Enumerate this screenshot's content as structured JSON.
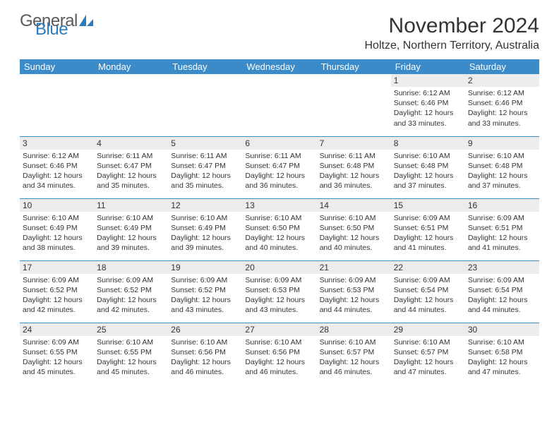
{
  "logo": {
    "part1": "General",
    "part2": "Blue"
  },
  "title": "November 2024",
  "location": "Holtze, Northern Territory, Australia",
  "colors": {
    "header_bg": "#3b8bc9",
    "header_fg": "#ffffff",
    "row_border": "#3b8bc9",
    "daynum_bg": "#ececec",
    "text": "#333333",
    "logo_gray": "#5a5a5a",
    "logo_blue": "#2b7bbd"
  },
  "weekdays": [
    "Sunday",
    "Monday",
    "Tuesday",
    "Wednesday",
    "Thursday",
    "Friday",
    "Saturday"
  ],
  "weeks": [
    [
      {
        "day": null
      },
      {
        "day": null
      },
      {
        "day": null
      },
      {
        "day": null
      },
      {
        "day": null
      },
      {
        "day": 1,
        "sunrise": "6:12 AM",
        "sunset": "6:46 PM",
        "daylight": "12 hours and 33 minutes."
      },
      {
        "day": 2,
        "sunrise": "6:12 AM",
        "sunset": "6:46 PM",
        "daylight": "12 hours and 33 minutes."
      }
    ],
    [
      {
        "day": 3,
        "sunrise": "6:12 AM",
        "sunset": "6:46 PM",
        "daylight": "12 hours and 34 minutes."
      },
      {
        "day": 4,
        "sunrise": "6:11 AM",
        "sunset": "6:47 PM",
        "daylight": "12 hours and 35 minutes."
      },
      {
        "day": 5,
        "sunrise": "6:11 AM",
        "sunset": "6:47 PM",
        "daylight": "12 hours and 35 minutes."
      },
      {
        "day": 6,
        "sunrise": "6:11 AM",
        "sunset": "6:47 PM",
        "daylight": "12 hours and 36 minutes."
      },
      {
        "day": 7,
        "sunrise": "6:11 AM",
        "sunset": "6:48 PM",
        "daylight": "12 hours and 36 minutes."
      },
      {
        "day": 8,
        "sunrise": "6:10 AM",
        "sunset": "6:48 PM",
        "daylight": "12 hours and 37 minutes."
      },
      {
        "day": 9,
        "sunrise": "6:10 AM",
        "sunset": "6:48 PM",
        "daylight": "12 hours and 37 minutes."
      }
    ],
    [
      {
        "day": 10,
        "sunrise": "6:10 AM",
        "sunset": "6:49 PM",
        "daylight": "12 hours and 38 minutes."
      },
      {
        "day": 11,
        "sunrise": "6:10 AM",
        "sunset": "6:49 PM",
        "daylight": "12 hours and 39 minutes."
      },
      {
        "day": 12,
        "sunrise": "6:10 AM",
        "sunset": "6:49 PM",
        "daylight": "12 hours and 39 minutes."
      },
      {
        "day": 13,
        "sunrise": "6:10 AM",
        "sunset": "6:50 PM",
        "daylight": "12 hours and 40 minutes."
      },
      {
        "day": 14,
        "sunrise": "6:10 AM",
        "sunset": "6:50 PM",
        "daylight": "12 hours and 40 minutes."
      },
      {
        "day": 15,
        "sunrise": "6:09 AM",
        "sunset": "6:51 PM",
        "daylight": "12 hours and 41 minutes."
      },
      {
        "day": 16,
        "sunrise": "6:09 AM",
        "sunset": "6:51 PM",
        "daylight": "12 hours and 41 minutes."
      }
    ],
    [
      {
        "day": 17,
        "sunrise": "6:09 AM",
        "sunset": "6:52 PM",
        "daylight": "12 hours and 42 minutes."
      },
      {
        "day": 18,
        "sunrise": "6:09 AM",
        "sunset": "6:52 PM",
        "daylight": "12 hours and 42 minutes."
      },
      {
        "day": 19,
        "sunrise": "6:09 AM",
        "sunset": "6:52 PM",
        "daylight": "12 hours and 43 minutes."
      },
      {
        "day": 20,
        "sunrise": "6:09 AM",
        "sunset": "6:53 PM",
        "daylight": "12 hours and 43 minutes."
      },
      {
        "day": 21,
        "sunrise": "6:09 AM",
        "sunset": "6:53 PM",
        "daylight": "12 hours and 44 minutes."
      },
      {
        "day": 22,
        "sunrise": "6:09 AM",
        "sunset": "6:54 PM",
        "daylight": "12 hours and 44 minutes."
      },
      {
        "day": 23,
        "sunrise": "6:09 AM",
        "sunset": "6:54 PM",
        "daylight": "12 hours and 44 minutes."
      }
    ],
    [
      {
        "day": 24,
        "sunrise": "6:09 AM",
        "sunset": "6:55 PM",
        "daylight": "12 hours and 45 minutes."
      },
      {
        "day": 25,
        "sunrise": "6:10 AM",
        "sunset": "6:55 PM",
        "daylight": "12 hours and 45 minutes."
      },
      {
        "day": 26,
        "sunrise": "6:10 AM",
        "sunset": "6:56 PM",
        "daylight": "12 hours and 46 minutes."
      },
      {
        "day": 27,
        "sunrise": "6:10 AM",
        "sunset": "6:56 PM",
        "daylight": "12 hours and 46 minutes."
      },
      {
        "day": 28,
        "sunrise": "6:10 AM",
        "sunset": "6:57 PM",
        "daylight": "12 hours and 46 minutes."
      },
      {
        "day": 29,
        "sunrise": "6:10 AM",
        "sunset": "6:57 PM",
        "daylight": "12 hours and 47 minutes."
      },
      {
        "day": 30,
        "sunrise": "6:10 AM",
        "sunset": "6:58 PM",
        "daylight": "12 hours and 47 minutes."
      }
    ]
  ],
  "labels": {
    "sunrise": "Sunrise:",
    "sunset": "Sunset:",
    "daylight": "Daylight:"
  }
}
